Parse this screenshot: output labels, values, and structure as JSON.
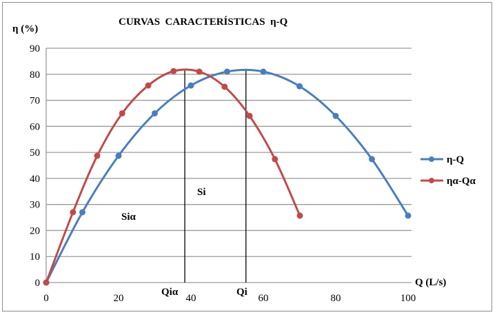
{
  "chart_data": {
    "type": "line",
    "title": "CURVAS  CARACTERÍSTICAS  η-Q",
    "xlabel": "Q (L/s)",
    "ylabel": "η (%)",
    "xlim": [
      0,
      100
    ],
    "ylim": [
      0,
      90
    ],
    "x_ticks": [
      "0",
      "20",
      "40",
      "60",
      "80",
      "100"
    ],
    "y_ticks": [
      "0",
      "10",
      "20",
      "30",
      "40",
      "50",
      "60",
      "70",
      "80",
      "90"
    ],
    "grid": "horizontal",
    "legend_position": "right",
    "series": [
      {
        "name": "η-Q",
        "color": "#4a7ebb",
        "x": [
          0,
          10,
          20,
          30,
          40,
          50,
          60,
          70,
          80,
          90,
          100
        ],
        "y": [
          0,
          27,
          48.7,
          65,
          75.7,
          81,
          81,
          75.4,
          64,
          47.4,
          25.7
        ]
      },
      {
        "name": "ηα-Qα",
        "color": "#be4b48",
        "x": [
          0,
          7.4,
          14.1,
          21,
          28.2,
          35.2,
          42.3,
          49.3,
          56.2,
          63.2,
          70.1
        ],
        "y": [
          0,
          27,
          48.7,
          65,
          75.7,
          81.2,
          81,
          75.2,
          64,
          47.4,
          25.7
        ]
      }
    ],
    "annotations": [
      {
        "text": "Qiα",
        "type": "vertical_line",
        "x": 38.3
      },
      {
        "text": "Qi",
        "type": "vertical_line",
        "x": 55.2
      },
      {
        "text": "Siα",
        "x": 19,
        "y": 25
      },
      {
        "text": "Si",
        "x": 44,
        "y": 34
      }
    ]
  },
  "labels": {
    "title": "CURVAS  CARACTERÍSTICAS  η-Q",
    "ylabel": "η (%)",
    "xlabel": "Q (L/s)",
    "qia": "Qiα",
    "qi": "Qi",
    "sia": "Siα",
    "si": "Si",
    "legend_1": "η-Q",
    "legend_2": "ηα-Qα"
  }
}
